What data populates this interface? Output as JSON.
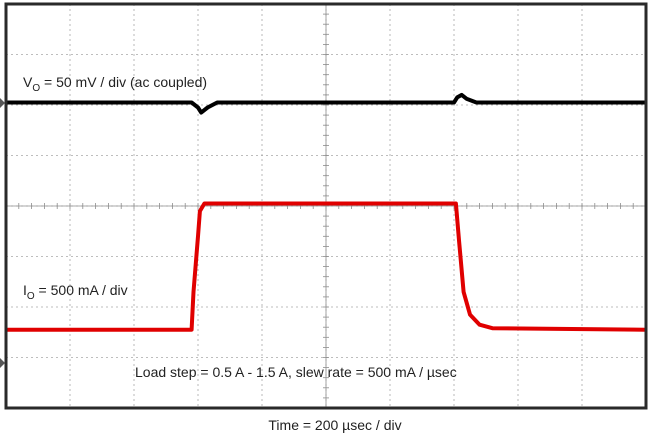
{
  "chart_data": {
    "type": "line",
    "title": "",
    "xlabel": "Time = 200 µsec / div",
    "ylabel": "",
    "x_divisions": 10,
    "y_divisions": 8,
    "xlim": [
      0,
      10
    ],
    "ylim": [
      0,
      8
    ],
    "grid": true,
    "annotations": {
      "vo_label_main": "V",
      "vo_label_sub": "O",
      "vo_label_rest": " = 50 mV / div (ac coupled)",
      "io_label_main": "I",
      "io_label_sub": "O",
      "io_label_rest": " = 500 mA / div",
      "load_step": "Load step = 0.5 A - 1.5 A, slew rate = 500 mA / µsec"
    },
    "series": [
      {
        "color": "#000000",
        "x": [
          0,
          2.9,
          3.0,
          3.05,
          3.15,
          3.3,
          3.5,
          7.0,
          7.05,
          7.12,
          7.2,
          7.35,
          10
        ],
        "y": [
          6.05,
          6.05,
          5.95,
          5.85,
          5.95,
          6.05,
          6.05,
          6.05,
          6.15,
          6.2,
          6.12,
          6.05,
          6.05
        ]
      },
      {
        "color": "#e00000",
        "x": [
          0,
          2.9,
          2.93,
          3.0,
          3.03,
          3.1,
          7.03,
          7.08,
          7.15,
          7.25,
          7.4,
          7.6,
          10
        ],
        "y": [
          1.55,
          1.55,
          2.3,
          3.4,
          3.9,
          4.05,
          4.05,
          3.3,
          2.3,
          1.85,
          1.65,
          1.58,
          1.55
        ]
      }
    ]
  }
}
